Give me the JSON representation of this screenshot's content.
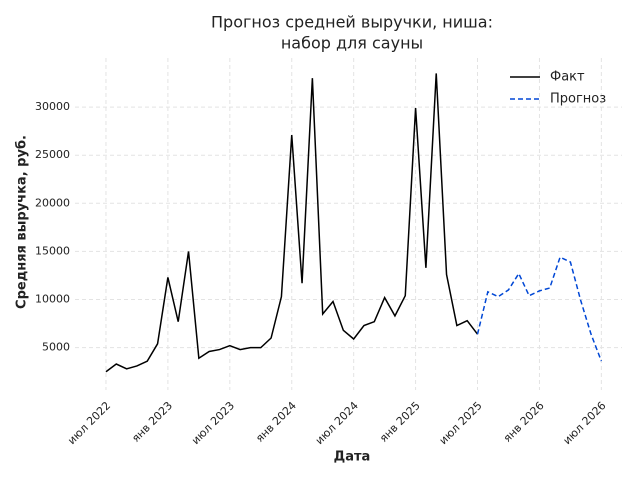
{
  "chart_data": {
    "type": "line",
    "title": [
      "Прогноз средней выручки, ниша:",
      "набор для сауны"
    ],
    "xlabel": "Дата",
    "ylabel": "Средняя выручка, руб.",
    "series": [
      {
        "name": "Факт",
        "color": "#000000",
        "dash": false,
        "x": [
          "2022-07",
          "2022-08",
          "2022-09",
          "2022-10",
          "2022-11",
          "2022-12",
          "2023-01",
          "2023-02",
          "2023-03",
          "2023-04",
          "2023-05",
          "2023-06",
          "2023-07",
          "2023-08",
          "2023-09",
          "2023-10",
          "2023-11",
          "2023-12",
          "2024-01",
          "2024-02",
          "2024-03",
          "2024-04",
          "2024-05",
          "2024-06",
          "2024-07",
          "2024-08",
          "2024-09",
          "2024-10",
          "2024-11",
          "2024-12",
          "2025-01",
          "2025-02",
          "2025-03",
          "2025-04",
          "2025-05",
          "2025-06",
          "2025-07"
        ],
        "values": [
          2500,
          3300,
          2800,
          3100,
          3600,
          5400,
          12300,
          7700,
          15000,
          3900,
          4600,
          4800,
          5200,
          4800,
          5000,
          5000,
          6000,
          10300,
          27100,
          11700,
          33000,
          8500,
          9800,
          6800,
          5900,
          7300,
          7700,
          10200,
          8300,
          10400,
          29900,
          13300,
          33500,
          12600,
          7300,
          7800,
          6400
        ]
      },
      {
        "name": "Прогноз",
        "color": "#0047d5",
        "dash": true,
        "x": [
          "2025-07",
          "2025-08",
          "2025-09",
          "2025-10",
          "2025-11",
          "2025-12",
          "2026-01",
          "2026-02",
          "2026-03",
          "2026-04",
          "2026-05",
          "2026-06",
          "2026-07"
        ],
        "values": [
          6400,
          10800,
          10300,
          11000,
          12700,
          10400,
          10900,
          11200,
          14400,
          13900,
          9900,
          6400,
          3600
        ]
      }
    ],
    "xlim": [
      "2022-04",
      "2026-09"
    ],
    "xticks": [
      {
        "value": "2022-07",
        "label": "июл 2022"
      },
      {
        "value": "2023-01",
        "label": "янв 2023"
      },
      {
        "value": "2023-07",
        "label": "июл 2023"
      },
      {
        "value": "2024-01",
        "label": "янв 2024"
      },
      {
        "value": "2024-07",
        "label": "июл 2024"
      },
      {
        "value": "2025-01",
        "label": "янв 2025"
      },
      {
        "value": "2025-07",
        "label": "июл 2025"
      },
      {
        "value": "2026-01",
        "label": "янв 2026"
      },
      {
        "value": "2026-07",
        "label": "июл 2026"
      }
    ],
    "ylim": [
      600,
      35100
    ],
    "yticks": [
      5000,
      10000,
      15000,
      20000,
      25000,
      30000
    ],
    "grid": true,
    "legend": "upper-right"
  }
}
